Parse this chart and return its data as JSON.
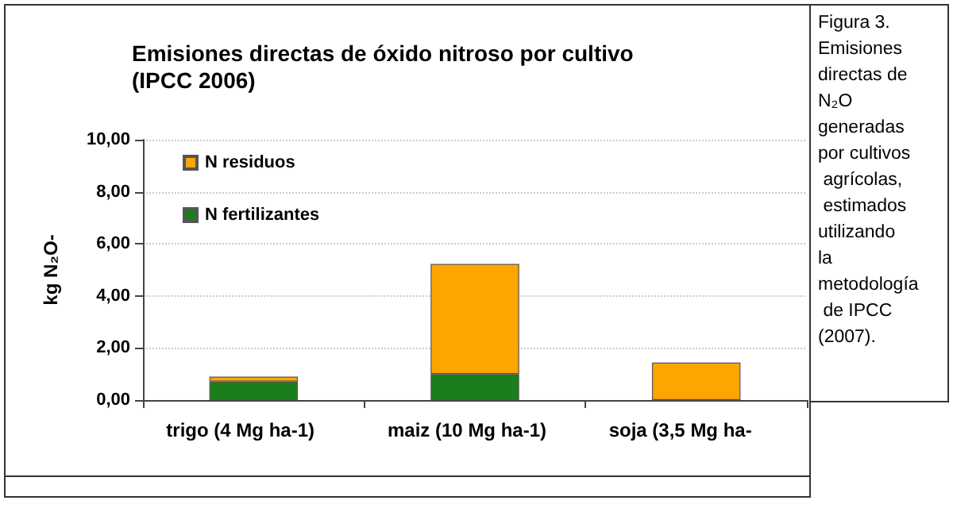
{
  "chart_data": {
    "type": "bar",
    "stacked": true,
    "title": "Emisiones directas de óxido nitroso por cultivo (IPCC 2006)",
    "ylabel": "kg N₂O-",
    "categories": [
      "trigo (4 Mg ha-1)",
      "maiz (10 Mg ha-1)",
      "soja (3,5 Mg ha-"
    ],
    "series": [
      {
        "name": "N fertilizantes",
        "color": "#1a7f1a",
        "values": [
          0.71,
          1.0,
          0
        ]
      },
      {
        "name": "N residuos",
        "color": "#ffa500",
        "values": [
          0.19,
          4.23,
          1.44
        ]
      }
    ],
    "ylim": [
      0,
      10
    ],
    "yticks": [
      {
        "value": 0,
        "label": "0,00"
      },
      {
        "value": 2,
        "label": "2,00"
      },
      {
        "value": 4,
        "label": "4,00"
      },
      {
        "value": 6,
        "label": "6,00"
      },
      {
        "value": 8,
        "label": "8,00"
      },
      {
        "value": 10,
        "label": "10,00"
      }
    ],
    "grid": "y",
    "legend": "top left",
    "annotations": [
      "Figura 3. Emisiones directas de N₂O generadas por cultivos agrícolas, estimados utilizando la metodología de IPCC (2007)."
    ]
  }
}
